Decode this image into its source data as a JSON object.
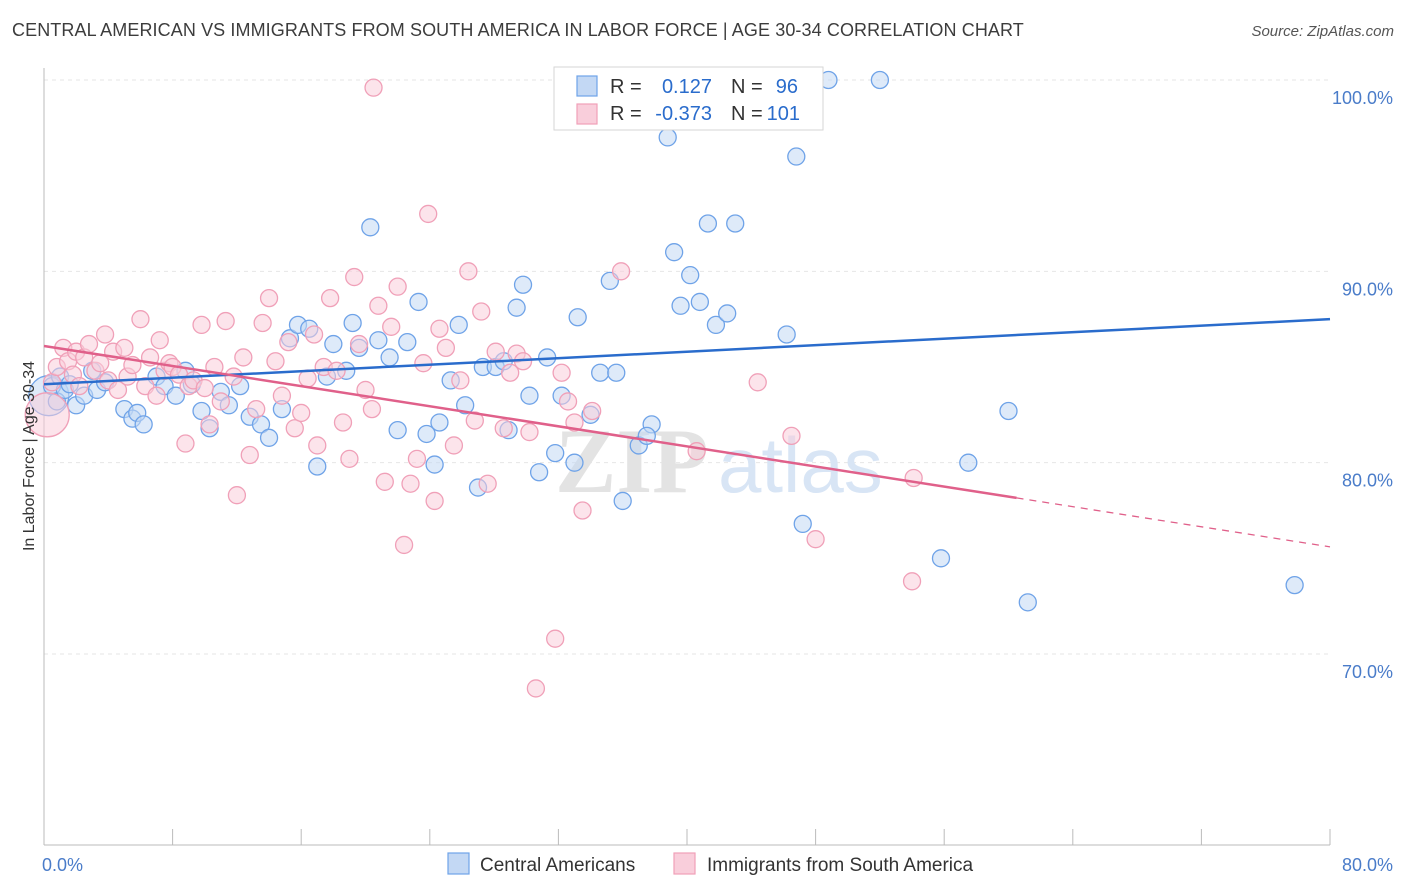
{
  "title": "CENTRAL AMERICAN VS IMMIGRANTS FROM SOUTH AMERICA IN LABOR FORCE | AGE 30-34 CORRELATION CHART",
  "source": "Source: ZipAtlas.com",
  "watermark": {
    "zip": "ZIP",
    "atlas": "atlas"
  },
  "legend_top": [
    {
      "r_label": "R =",
      "r_value": "0.127",
      "n_label": "N =",
      "n_value": "96",
      "color": "#6fa3e8"
    },
    {
      "r_label": "R =",
      "r_value": "-0.373",
      "n_label": "N =",
      "n_value": "101",
      "color": "#f0a0b8"
    }
  ],
  "legend_bottom": [
    {
      "label": "Central Americans",
      "color": "#6fa3e8"
    },
    {
      "label": "Immigrants from South America",
      "color": "#f0a0b8"
    }
  ],
  "chart_data": {
    "type": "scatter",
    "title": "CENTRAL AMERICAN VS IMMIGRANTS FROM SOUTH AMERICA IN LABOR FORCE | AGE 30-34 CORRELATION CHART",
    "xlabel": "",
    "ylabel": "In Labor Force | Age 30-34",
    "xlim": [
      0,
      80
    ],
    "ylim": [
      60,
      102
    ],
    "x_tick_labels": [
      "0.0%",
      "80.0%"
    ],
    "y_ticks": [
      70,
      80,
      90,
      100
    ],
    "y_tick_labels": [
      "70.0%",
      "80.0%",
      "90.0%",
      "100.0%"
    ],
    "grid": true,
    "legend_position": "top-center",
    "series": [
      {
        "name": "Central Americans",
        "color": "#6fa3e8",
        "trend": {
          "x0": 0,
          "y0": 84.1,
          "x1": 80,
          "y1": 87.5,
          "dashed_from": null
        },
        "points": [
          [
            0.3,
            83.5
          ],
          [
            0.5,
            84.0
          ],
          [
            0.8,
            83.2
          ],
          [
            1.0,
            84.5
          ],
          [
            1.3,
            83.8
          ],
          [
            1.6,
            84.1
          ],
          [
            2.0,
            83.0
          ],
          [
            2.5,
            83.5
          ],
          [
            3.0,
            84.8
          ],
          [
            3.3,
            83.8
          ],
          [
            3.8,
            84.2
          ],
          [
            5.0,
            82.8
          ],
          [
            5.5,
            82.3
          ],
          [
            5.8,
            82.6
          ],
          [
            6.2,
            82.0
          ],
          [
            7.0,
            84.5
          ],
          [
            7.5,
            84.0
          ],
          [
            8.2,
            83.5
          ],
          [
            8.8,
            84.8
          ],
          [
            9.2,
            84.1
          ],
          [
            9.8,
            82.7
          ],
          [
            10.3,
            81.8
          ],
          [
            11.0,
            83.7
          ],
          [
            11.5,
            83.0
          ],
          [
            12.2,
            84.0
          ],
          [
            12.8,
            82.4
          ],
          [
            13.5,
            82.0
          ],
          [
            14.0,
            81.3
          ],
          [
            14.8,
            82.8
          ],
          [
            15.3,
            86.5
          ],
          [
            15.8,
            87.2
          ],
          [
            16.5,
            87.0
          ],
          [
            17.0,
            79.8
          ],
          [
            17.6,
            84.5
          ],
          [
            18.0,
            86.2
          ],
          [
            18.8,
            84.8
          ],
          [
            19.2,
            87.3
          ],
          [
            19.6,
            86.0
          ],
          [
            20.3,
            92.3
          ],
          [
            20.8,
            86.4
          ],
          [
            21.5,
            85.5
          ],
          [
            22.0,
            81.7
          ],
          [
            22.6,
            86.3
          ],
          [
            23.3,
            88.4
          ],
          [
            23.8,
            81.5
          ],
          [
            24.3,
            79.9
          ],
          [
            24.6,
            82.1
          ],
          [
            25.3,
            84.3
          ],
          [
            25.8,
            87.2
          ],
          [
            26.2,
            83.0
          ],
          [
            27.0,
            78.7
          ],
          [
            27.3,
            85.0
          ],
          [
            28.1,
            85.0
          ],
          [
            28.6,
            85.3
          ],
          [
            28.9,
            81.7
          ],
          [
            29.4,
            88.1
          ],
          [
            29.8,
            89.3
          ],
          [
            30.2,
            83.5
          ],
          [
            30.8,
            79.5
          ],
          [
            31.3,
            85.5
          ],
          [
            31.8,
            80.5
          ],
          [
            32.2,
            83.5
          ],
          [
            33.0,
            80.0
          ],
          [
            33.2,
            87.6
          ],
          [
            34.0,
            82.5
          ],
          [
            34.6,
            84.7
          ],
          [
            35.2,
            89.5
          ],
          [
            35.6,
            84.7
          ],
          [
            36.0,
            78.0
          ],
          [
            37.0,
            80.9
          ],
          [
            37.8,
            82.0
          ],
          [
            38.2,
            100.0
          ],
          [
            37.5,
            81.4
          ],
          [
            38.8,
            97.0
          ],
          [
            39.2,
            91.0
          ],
          [
            39.6,
            88.2
          ],
          [
            40.2,
            89.8
          ],
          [
            40.8,
            88.4
          ],
          [
            41.3,
            92.5
          ],
          [
            41.8,
            87.2
          ],
          [
            42.5,
            87.8
          ],
          [
            43.0,
            92.5
          ],
          [
            43.8,
            100.0
          ],
          [
            44.6,
            100.0
          ],
          [
            46.2,
            86.7
          ],
          [
            46.8,
            96.0
          ],
          [
            47.2,
            76.8
          ],
          [
            48.8,
            100.0
          ],
          [
            52.0,
            100.0
          ],
          [
            55.8,
            75.0
          ],
          [
            57.5,
            80.0
          ],
          [
            60.0,
            82.7
          ],
          [
            61.2,
            72.7
          ],
          [
            77.8,
            73.6
          ]
        ]
      },
      {
        "name": "Immigrants from South America",
        "color": "#f0a0b8",
        "trend": {
          "x0": 0,
          "y0": 86.1,
          "x1": 80,
          "y1": 75.6,
          "dashed_from": 60.5
        },
        "points": [
          [
            0.2,
            82.5
          ],
          [
            0.5,
            84.2
          ],
          [
            0.8,
            85.0
          ],
          [
            1.2,
            86.0
          ],
          [
            1.5,
            85.3
          ],
          [
            1.8,
            84.6
          ],
          [
            2.0,
            85.8
          ],
          [
            2.2,
            84.0
          ],
          [
            2.5,
            85.5
          ],
          [
            2.8,
            86.2
          ],
          [
            3.2,
            84.8
          ],
          [
            3.5,
            85.2
          ],
          [
            3.8,
            86.7
          ],
          [
            4.0,
            84.3
          ],
          [
            4.3,
            85.8
          ],
          [
            4.6,
            83.8
          ],
          [
            5.0,
            86.0
          ],
          [
            5.2,
            84.5
          ],
          [
            5.5,
            85.1
          ],
          [
            6.0,
            87.5
          ],
          [
            6.3,
            84.0
          ],
          [
            6.6,
            85.5
          ],
          [
            7.0,
            83.5
          ],
          [
            7.2,
            86.4
          ],
          [
            7.5,
            84.8
          ],
          [
            7.8,
            85.2
          ],
          [
            8.0,
            85.0
          ],
          [
            8.4,
            84.6
          ],
          [
            8.8,
            81.0
          ],
          [
            9.0,
            84.0
          ],
          [
            9.3,
            84.3
          ],
          [
            9.8,
            87.2
          ],
          [
            10.0,
            83.9
          ],
          [
            10.3,
            82.0
          ],
          [
            10.6,
            85.0
          ],
          [
            11.0,
            83.2
          ],
          [
            11.3,
            87.4
          ],
          [
            11.8,
            84.5
          ],
          [
            12.0,
            78.3
          ],
          [
            12.4,
            85.5
          ],
          [
            12.8,
            80.4
          ],
          [
            13.2,
            82.8
          ],
          [
            13.6,
            87.3
          ],
          [
            14.0,
            88.6
          ],
          [
            14.4,
            85.3
          ],
          [
            14.8,
            83.5
          ],
          [
            15.2,
            86.3
          ],
          [
            15.6,
            81.8
          ],
          [
            16.0,
            82.6
          ],
          [
            16.4,
            84.4
          ],
          [
            16.8,
            86.7
          ],
          [
            17.0,
            80.9
          ],
          [
            17.4,
            85.0
          ],
          [
            17.8,
            88.6
          ],
          [
            18.2,
            84.8
          ],
          [
            18.6,
            82.1
          ],
          [
            19.0,
            80.2
          ],
          [
            19.3,
            89.7
          ],
          [
            19.6,
            86.2
          ],
          [
            20.0,
            83.8
          ],
          [
            20.4,
            82.8
          ],
          [
            20.8,
            88.2
          ],
          [
            21.2,
            79.0
          ],
          [
            21.6,
            87.1
          ],
          [
            22.0,
            89.2
          ],
          [
            22.4,
            75.7
          ],
          [
            22.8,
            78.9
          ],
          [
            23.2,
            80.2
          ],
          [
            23.6,
            85.2
          ],
          [
            23.9,
            93.0
          ],
          [
            24.3,
            78.0
          ],
          [
            24.6,
            87.0
          ],
          [
            25.0,
            86.0
          ],
          [
            25.5,
            80.9
          ],
          [
            25.9,
            84.3
          ],
          [
            26.4,
            90.0
          ],
          [
            26.8,
            82.2
          ],
          [
            27.2,
            87.9
          ],
          [
            27.6,
            78.9
          ],
          [
            28.1,
            85.8
          ],
          [
            28.6,
            81.8
          ],
          [
            29.0,
            84.7
          ],
          [
            29.4,
            85.7
          ],
          [
            29.8,
            85.3
          ],
          [
            30.2,
            81.6
          ],
          [
            30.6,
            68.2
          ],
          [
            31.8,
            70.8
          ],
          [
            32.2,
            84.7
          ],
          [
            32.6,
            83.2
          ],
          [
            33.0,
            82.1
          ],
          [
            33.5,
            77.5
          ],
          [
            34.1,
            82.7
          ],
          [
            35.9,
            90.0
          ],
          [
            40.6,
            80.6
          ],
          [
            44.4,
            84.2
          ],
          [
            46.5,
            81.4
          ],
          [
            48.0,
            76.0
          ],
          [
            54.0,
            73.8
          ],
          [
            54.1,
            79.2
          ],
          [
            20.5,
            99.6
          ]
        ]
      }
    ]
  }
}
